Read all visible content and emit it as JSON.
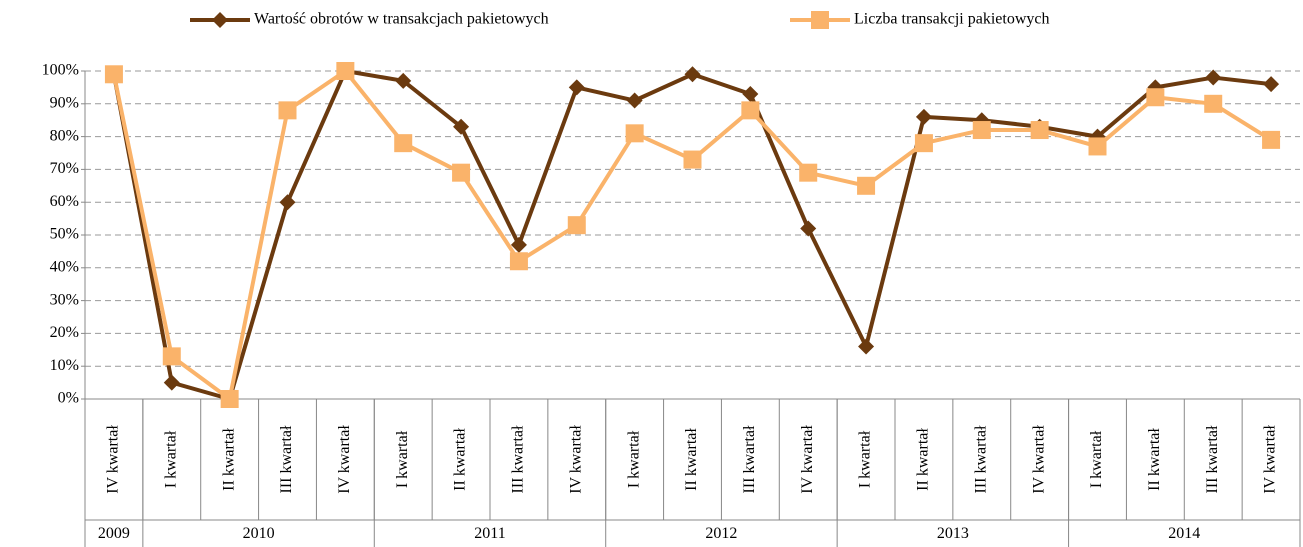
{
  "chart_data": {
    "type": "line",
    "categories": [
      "IV kwartał",
      "I kwartał",
      "II kwartał",
      "III kwartał",
      "IV kwartał",
      "I kwartał",
      "II kwartał",
      "III kwartał",
      "IV kwartał",
      "I kwartał",
      "II kwartał",
      "III kwartał",
      "IV kwartał",
      "I kwartał",
      "II kwartał",
      "III kwartał",
      "IV kwartał",
      "I kwartał",
      "II kwartał",
      "III kwartał",
      "IV kwartał"
    ],
    "category_groups": [
      {
        "label": "2009",
        "count": 1
      },
      {
        "label": "2010",
        "count": 4
      },
      {
        "label": "2011",
        "count": 4
      },
      {
        "label": "2012",
        "count": 4
      },
      {
        "label": "2013",
        "count": 4
      },
      {
        "label": "2014",
        "count": 4
      }
    ],
    "series": [
      {
        "name": "Wartość obrotów w transakcjach pakietowych",
        "color": "#6b3a0f",
        "marker": "diamond",
        "values": [
          99,
          5,
          0,
          60,
          100,
          97,
          83,
          47,
          95,
          91,
          99,
          93,
          52,
          16,
          86,
          85,
          83,
          80,
          95,
          98,
          96
        ]
      },
      {
        "name": "Liczba transakcji pakietowych",
        "color": "#fab36a",
        "marker": "square",
        "values": [
          99,
          13,
          0,
          88,
          100,
          78,
          69,
          42,
          53,
          81,
          73,
          88,
          69,
          65,
          78,
          82,
          82,
          77,
          92,
          90,
          79
        ]
      }
    ],
    "ylim": [
      0,
      100
    ],
    "yticks": [
      {
        "value": 0,
        "label": "0%"
      },
      {
        "value": 10,
        "label": "10%"
      },
      {
        "value": 20,
        "label": "20%"
      },
      {
        "value": 30,
        "label": "30%"
      },
      {
        "value": 40,
        "label": "40%"
      },
      {
        "value": 50,
        "label": "50%"
      },
      {
        "value": 60,
        "label": "60%"
      },
      {
        "value": 70,
        "label": "70%"
      },
      {
        "value": 80,
        "label": "80%"
      },
      {
        "value": 90,
        "label": "90%"
      },
      {
        "value": 100,
        "label": "100%"
      }
    ],
    "grid": true,
    "legend": "top"
  }
}
